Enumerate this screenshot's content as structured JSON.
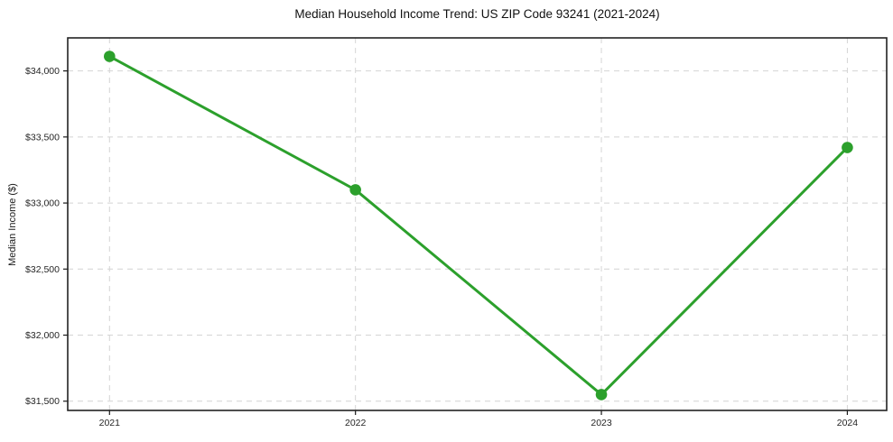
{
  "chart_data": {
    "type": "line",
    "title": "Median Household Income Trend: US ZIP Code 93241 (2021-2024)",
    "xlabel": "",
    "ylabel": "Median Income ($)",
    "x": [
      2021,
      2022,
      2023,
      2024
    ],
    "x_tick_labels": [
      "2021",
      "2022",
      "2023",
      "2024"
    ],
    "series": [
      {
        "name": "Median Household Income",
        "values": [
          34110,
          33100,
          31550,
          33420
        ]
      }
    ],
    "y_ticks": [
      31500,
      32000,
      32500,
      33000,
      33500,
      34000
    ],
    "y_tick_labels": [
      "$31,500",
      "$32,000",
      "$32,500",
      "$33,000",
      "$33,500",
      "$34,000"
    ],
    "xlim": [
      2020.83,
      2024.16
    ],
    "ylim": [
      31430,
      34250
    ],
    "grid": true,
    "grid_style": "dashed",
    "legend": false,
    "colors": {
      "line": "#2ca02c",
      "marker": "#2ca02c",
      "grid": "#d4d4d4",
      "spine": "#222222",
      "tick": "#1a1a1a",
      "title_text": "#111111",
      "background": "#ffffff"
    },
    "marker": "circle"
  }
}
